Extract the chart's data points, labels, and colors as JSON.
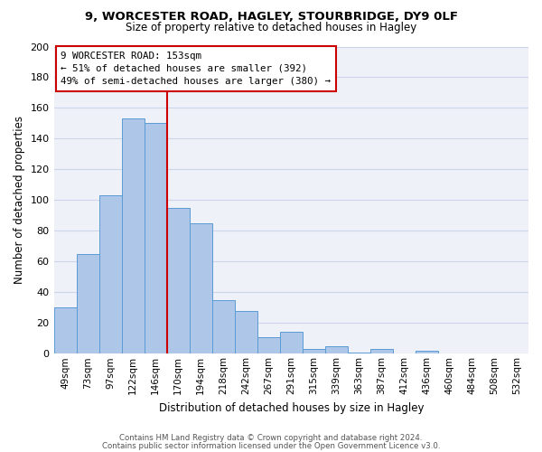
{
  "title_line1": "9, WORCESTER ROAD, HAGLEY, STOURBRIDGE, DY9 0LF",
  "title_line2": "Size of property relative to detached houses in Hagley",
  "xlabel": "Distribution of detached houses by size in Hagley",
  "ylabel": "Number of detached properties",
  "bar_labels": [
    "49sqm",
    "73sqm",
    "97sqm",
    "122sqm",
    "146sqm",
    "170sqm",
    "194sqm",
    "218sqm",
    "242sqm",
    "267sqm",
    "291sqm",
    "315sqm",
    "339sqm",
    "363sqm",
    "387sqm",
    "412sqm",
    "436sqm",
    "460sqm",
    "484sqm",
    "508sqm",
    "532sqm"
  ],
  "bar_values": [
    30,
    65,
    103,
    153,
    150,
    95,
    85,
    35,
    28,
    11,
    14,
    3,
    5,
    1,
    3,
    0,
    2,
    0,
    0,
    0,
    0
  ],
  "bar_color": "#aec6e8",
  "bar_edge_color": "#5b9bd5",
  "highlight_color": "#cc0000",
  "ylim": [
    0,
    200
  ],
  "yticks": [
    0,
    20,
    40,
    60,
    80,
    100,
    120,
    140,
    160,
    180,
    200
  ],
  "annotation_title": "9 WORCESTER ROAD: 153sqm",
  "annotation_line1": "← 51% of detached houses are smaller (392)",
  "annotation_line2": "49% of semi-detached houses are larger (380) →",
  "footer_line1": "Contains HM Land Registry data © Crown copyright and database right 2024.",
  "footer_line2": "Contains public sector information licensed under the Open Government Licence v3.0.",
  "grid_color": "#cdd6e8",
  "background_color": "#eef1f8"
}
